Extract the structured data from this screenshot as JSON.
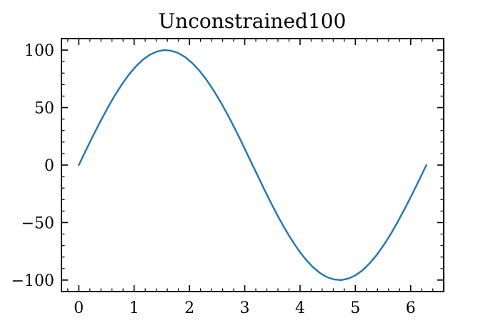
{
  "chart_data": {
    "type": "line",
    "title": "Unconstrained100",
    "xlabel": "",
    "ylabel": "",
    "xlim": [
      -0.314,
      6.597
    ],
    "ylim": [
      -110,
      110
    ],
    "xticks": [
      0,
      1,
      2,
      3,
      4,
      5,
      6
    ],
    "yticks": [
      -100,
      -50,
      0,
      50,
      100
    ],
    "xtick_labels": [
      "0",
      "1",
      "2",
      "3",
      "4",
      "5",
      "6"
    ],
    "ytick_labels": [
      "−100",
      "−50",
      "0",
      "50",
      "100"
    ],
    "x_minor_step": 0.2,
    "y_minor_step": 10,
    "grid": false,
    "tick_direction": "in",
    "series": [
      {
        "color": "#1f77b4",
        "x": [
          0.0,
          0.128,
          0.256,
          0.385,
          0.513,
          0.641,
          0.769,
          0.898,
          1.026,
          1.154,
          1.282,
          1.411,
          1.539,
          1.667,
          1.795,
          1.923,
          2.052,
          2.18,
          2.308,
          2.436,
          2.565,
          2.693,
          2.821,
          2.949,
          3.077,
          3.206,
          3.334,
          3.462,
          3.59,
          3.719,
          3.847,
          3.975,
          4.103,
          4.231,
          4.36,
          4.488,
          4.616,
          4.744,
          4.873,
          5.001,
          5.129,
          5.257,
          5.386,
          5.514,
          5.642,
          5.77,
          5.898,
          6.027,
          6.155,
          6.283
        ],
        "y": [
          0.0,
          12.8,
          25.4,
          37.5,
          49.0,
          59.8,
          69.5,
          78.2,
          85.5,
          91.5,
          95.9,
          98.7,
          100.0,
          99.5,
          97.5,
          93.9,
          88.7,
          82.1,
          74.2,
          65.0,
          54.8,
          43.6,
          31.7,
          19.3,
          6.4,
          -6.4,
          -19.3,
          -31.7,
          -43.6,
          -54.8,
          -65.0,
          -74.2,
          -82.1,
          -88.7,
          -93.9,
          -97.5,
          -99.5,
          -100.0,
          -98.7,
          -95.9,
          -91.5,
          -85.5,
          -78.2,
          -69.5,
          -59.8,
          -49.0,
          -37.5,
          -25.4,
          -12.8,
          0.0
        ]
      }
    ]
  }
}
